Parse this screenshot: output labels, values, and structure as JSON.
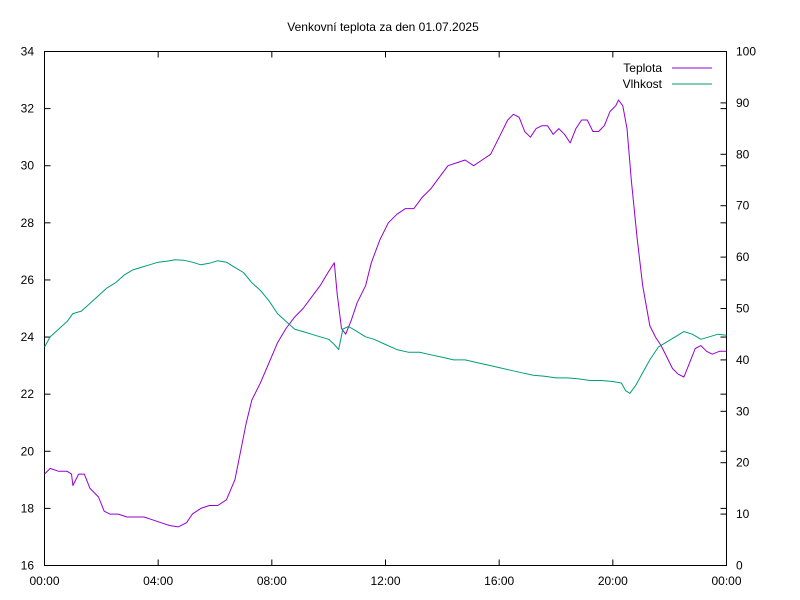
{
  "chart_data": {
    "type": "line",
    "title": "Venkovní teplota za den 01.07.2025",
    "xlim": [
      0,
      24
    ],
    "x_ticks": [
      "00:00",
      "04:00",
      "08:00",
      "12:00",
      "16:00",
      "20:00",
      "00:00"
    ],
    "y_left": {
      "range": [
        16,
        34
      ],
      "ticks": [
        "16",
        "18",
        "20",
        "22",
        "24",
        "26",
        "28",
        "30",
        "32",
        "34"
      ]
    },
    "y_right": {
      "range": [
        0,
        100
      ],
      "ticks": [
        "0",
        "10",
        "20",
        "30",
        "40",
        "50",
        "60",
        "70",
        "80",
        "90",
        "100"
      ]
    },
    "grid": false,
    "legend": "top-right",
    "series": [
      {
        "name": "Teplota",
        "axis": "left",
        "color": "#9400d3",
        "points": [
          [
            0.0,
            19.2
          ],
          [
            0.2,
            19.4
          ],
          [
            0.5,
            19.3
          ],
          [
            0.8,
            19.3
          ],
          [
            0.95,
            19.2
          ],
          [
            1.0,
            18.8
          ],
          [
            1.2,
            19.2
          ],
          [
            1.4,
            19.2
          ],
          [
            1.6,
            18.7
          ],
          [
            1.9,
            18.4
          ],
          [
            2.1,
            17.9
          ],
          [
            2.3,
            17.8
          ],
          [
            2.6,
            17.8
          ],
          [
            2.9,
            17.7
          ],
          [
            3.2,
            17.7
          ],
          [
            3.5,
            17.7
          ],
          [
            3.8,
            17.6
          ],
          [
            4.1,
            17.5
          ],
          [
            4.4,
            17.4
          ],
          [
            4.7,
            17.35
          ],
          [
            5.0,
            17.5
          ],
          [
            5.2,
            17.8
          ],
          [
            5.5,
            18.0
          ],
          [
            5.8,
            18.1
          ],
          [
            6.1,
            18.1
          ],
          [
            6.4,
            18.3
          ],
          [
            6.7,
            19.0
          ],
          [
            6.9,
            20.0
          ],
          [
            7.1,
            21.0
          ],
          [
            7.3,
            21.8
          ],
          [
            7.6,
            22.4
          ],
          [
            7.9,
            23.1
          ],
          [
            8.2,
            23.8
          ],
          [
            8.5,
            24.3
          ],
          [
            8.8,
            24.7
          ],
          [
            9.1,
            25.0
          ],
          [
            9.4,
            25.4
          ],
          [
            9.7,
            25.8
          ],
          [
            10.0,
            26.3
          ],
          [
            10.2,
            26.6
          ],
          [
            10.3,
            25.5
          ],
          [
            10.45,
            24.3
          ],
          [
            10.6,
            24.1
          ],
          [
            10.8,
            24.6
          ],
          [
            11.0,
            25.2
          ],
          [
            11.3,
            25.8
          ],
          [
            11.5,
            26.6
          ],
          [
            11.8,
            27.4
          ],
          [
            12.1,
            28.0
          ],
          [
            12.4,
            28.3
          ],
          [
            12.7,
            28.5
          ],
          [
            13.0,
            28.5
          ],
          [
            13.3,
            28.9
          ],
          [
            13.6,
            29.2
          ],
          [
            13.9,
            29.6
          ],
          [
            14.2,
            30.0
          ],
          [
            14.5,
            30.1
          ],
          [
            14.8,
            30.2
          ],
          [
            15.1,
            30.0
          ],
          [
            15.4,
            30.2
          ],
          [
            15.7,
            30.4
          ],
          [
            16.0,
            31.0
          ],
          [
            16.3,
            31.6
          ],
          [
            16.5,
            31.8
          ],
          [
            16.7,
            31.7
          ],
          [
            16.9,
            31.2
          ],
          [
            17.1,
            31.0
          ],
          [
            17.3,
            31.3
          ],
          [
            17.5,
            31.4
          ],
          [
            17.7,
            31.4
          ],
          [
            17.9,
            31.1
          ],
          [
            18.1,
            31.3
          ],
          [
            18.3,
            31.1
          ],
          [
            18.5,
            30.8
          ],
          [
            18.7,
            31.3
          ],
          [
            18.9,
            31.6
          ],
          [
            19.1,
            31.6
          ],
          [
            19.3,
            31.2
          ],
          [
            19.5,
            31.2
          ],
          [
            19.7,
            31.4
          ],
          [
            19.9,
            31.9
          ],
          [
            20.1,
            32.1
          ],
          [
            20.2,
            32.3
          ],
          [
            20.35,
            32.1
          ],
          [
            20.5,
            31.3
          ],
          [
            20.65,
            29.5
          ],
          [
            20.85,
            27.5
          ],
          [
            21.05,
            25.8
          ],
          [
            21.3,
            24.4
          ],
          [
            21.5,
            24.0
          ],
          [
            21.7,
            23.7
          ],
          [
            21.9,
            23.3
          ],
          [
            22.1,
            22.9
          ],
          [
            22.3,
            22.7
          ],
          [
            22.5,
            22.6
          ],
          [
            22.7,
            23.1
          ],
          [
            22.9,
            23.6
          ],
          [
            23.1,
            23.7
          ],
          [
            23.3,
            23.5
          ],
          [
            23.5,
            23.4
          ],
          [
            23.75,
            23.5
          ],
          [
            24.0,
            23.5
          ]
        ]
      },
      {
        "name": "Vlhkost",
        "axis": "right",
        "color": "#009e73",
        "points": [
          [
            0.0,
            42.5
          ],
          [
            0.2,
            44.5
          ],
          [
            0.5,
            46.0
          ],
          [
            0.8,
            47.5
          ],
          [
            1.0,
            49.0
          ],
          [
            1.3,
            49.5
          ],
          [
            1.6,
            51.0
          ],
          [
            1.9,
            52.5
          ],
          [
            2.2,
            54.0
          ],
          [
            2.5,
            55.0
          ],
          [
            2.8,
            56.5
          ],
          [
            3.1,
            57.5
          ],
          [
            3.4,
            58.0
          ],
          [
            3.7,
            58.5
          ],
          [
            4.0,
            59.0
          ],
          [
            4.3,
            59.2
          ],
          [
            4.6,
            59.5
          ],
          [
            4.9,
            59.4
          ],
          [
            5.2,
            59.0
          ],
          [
            5.5,
            58.5
          ],
          [
            5.8,
            58.8
          ],
          [
            6.1,
            59.3
          ],
          [
            6.4,
            59.0
          ],
          [
            6.7,
            58.0
          ],
          [
            7.0,
            57.0
          ],
          [
            7.3,
            55.0
          ],
          [
            7.6,
            53.5
          ],
          [
            7.9,
            51.5
          ],
          [
            8.2,
            49.0
          ],
          [
            8.5,
            47.5
          ],
          [
            8.8,
            46.0
          ],
          [
            9.1,
            45.5
          ],
          [
            9.4,
            45.0
          ],
          [
            9.7,
            44.5
          ],
          [
            10.0,
            44.0
          ],
          [
            10.2,
            43.0
          ],
          [
            10.35,
            42.0
          ],
          [
            10.5,
            46.0
          ],
          [
            10.7,
            46.5
          ],
          [
            11.0,
            45.5
          ],
          [
            11.3,
            44.5
          ],
          [
            11.6,
            44.0
          ],
          [
            12.0,
            43.0
          ],
          [
            12.4,
            42.0
          ],
          [
            12.8,
            41.5
          ],
          [
            13.2,
            41.5
          ],
          [
            13.6,
            41.0
          ],
          [
            14.0,
            40.5
          ],
          [
            14.4,
            40.0
          ],
          [
            14.8,
            40.0
          ],
          [
            15.2,
            39.5
          ],
          [
            15.6,
            39.0
          ],
          [
            16.0,
            38.5
          ],
          [
            16.4,
            38.0
          ],
          [
            16.8,
            37.5
          ],
          [
            17.2,
            37.0
          ],
          [
            17.6,
            36.8
          ],
          [
            18.0,
            36.5
          ],
          [
            18.4,
            36.5
          ],
          [
            18.8,
            36.3
          ],
          [
            19.2,
            36.0
          ],
          [
            19.6,
            36.0
          ],
          [
            20.0,
            35.8
          ],
          [
            20.3,
            35.5
          ],
          [
            20.45,
            34.0
          ],
          [
            20.6,
            33.5
          ],
          [
            20.8,
            35.0
          ],
          [
            21.0,
            37.0
          ],
          [
            21.3,
            40.0
          ],
          [
            21.6,
            42.5
          ],
          [
            21.9,
            43.5
          ],
          [
            22.2,
            44.5
          ],
          [
            22.5,
            45.5
          ],
          [
            22.8,
            45.0
          ],
          [
            23.1,
            44.0
          ],
          [
            23.4,
            44.5
          ],
          [
            23.7,
            45.0
          ],
          [
            24.0,
            44.8
          ]
        ]
      }
    ]
  }
}
